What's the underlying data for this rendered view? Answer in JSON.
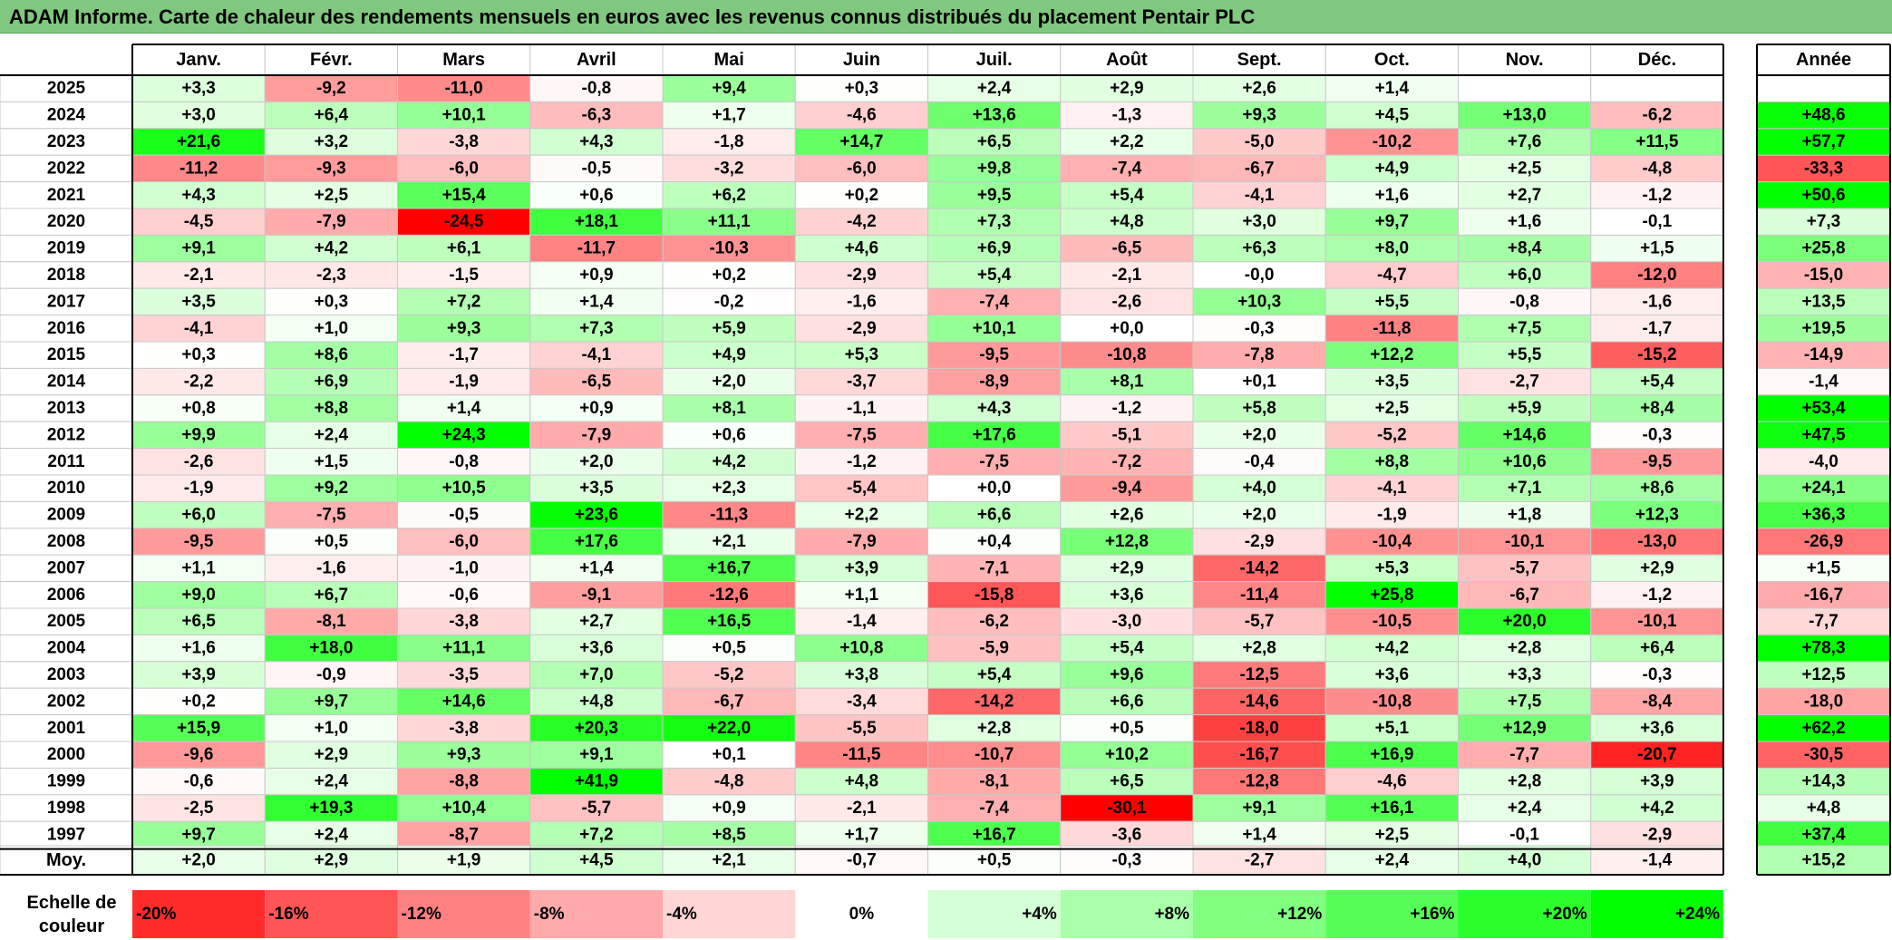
{
  "title": "ADAM Informe. Carte de chaleur des rendements mensuels en euros avec les revenus connus distribués du placement Pentair PLC",
  "chart_data": {
    "type": "heatmap",
    "columns": [
      "Janv.",
      "Févr.",
      "Mars",
      "Avril",
      "Mai",
      "Juin",
      "Juil.",
      "Août",
      "Sept.",
      "Oct.",
      "Nov.",
      "Déc."
    ],
    "year_header": "Année",
    "rows": [
      {
        "label": "2025",
        "values": [
          "+3,3",
          "-9,2",
          "-11,0",
          "-0,8",
          "+9,4",
          "+0,3",
          "+2,4",
          "+2,9",
          "+2,6",
          "+1,4",
          "",
          ""
        ],
        "year": ""
      },
      {
        "label": "2024",
        "values": [
          "+3,0",
          "+6,4",
          "+10,1",
          "-6,3",
          "+1,7",
          "-4,6",
          "+13,6",
          "-1,3",
          "+9,3",
          "+4,5",
          "+13,0",
          "-6,2"
        ],
        "year": "+48,6"
      },
      {
        "label": "2023",
        "values": [
          "+21,6",
          "+3,2",
          "-3,8",
          "+4,3",
          "-1,8",
          "+14,7",
          "+6,5",
          "+2,2",
          "-5,0",
          "-10,2",
          "+7,6",
          "+11,5"
        ],
        "year": "+57,7"
      },
      {
        "label": "2022",
        "values": [
          "-11,2",
          "-9,3",
          "-6,0",
          "-0,5",
          "-3,2",
          "-6,0",
          "+9,8",
          "-7,4",
          "-6,7",
          "+4,9",
          "+2,5",
          "-4,8"
        ],
        "year": "-33,3"
      },
      {
        "label": "2021",
        "values": [
          "+4,3",
          "+2,5",
          "+15,4",
          "+0,6",
          "+6,2",
          "+0,2",
          "+9,5",
          "+5,4",
          "-4,1",
          "+1,6",
          "+2,7",
          "-1,2"
        ],
        "year": "+50,6"
      },
      {
        "label": "2020",
        "values": [
          "-4,5",
          "-7,9",
          "-24,5",
          "+18,1",
          "+11,1",
          "-4,2",
          "+7,3",
          "+4,8",
          "+3,0",
          "+9,7",
          "+1,6",
          "-0,1"
        ],
        "year": "+7,3"
      },
      {
        "label": "2019",
        "values": [
          "+9,1",
          "+4,2",
          "+6,1",
          "-11,7",
          "-10,3",
          "+4,6",
          "+6,9",
          "-6,5",
          "+6,3",
          "+8,0",
          "+8,4",
          "+1,5"
        ],
        "year": "+25,8"
      },
      {
        "label": "2018",
        "values": [
          "-2,1",
          "-2,3",
          "-1,5",
          "+0,9",
          "+0,2",
          "-2,9",
          "+5,4",
          "-2,1",
          "-0,0",
          "-4,7",
          "+6,0",
          "-12,0"
        ],
        "year": "-15,0"
      },
      {
        "label": "2017",
        "values": [
          "+3,5",
          "+0,3",
          "+7,2",
          "+1,4",
          "-0,2",
          "-1,6",
          "-7,4",
          "-2,6",
          "+10,3",
          "+5,5",
          "-0,8",
          "-1,6"
        ],
        "year": "+13,5"
      },
      {
        "label": "2016",
        "values": [
          "-4,1",
          "+1,0",
          "+9,3",
          "+7,3",
          "+5,9",
          "-2,9",
          "+10,1",
          "+0,0",
          "-0,3",
          "-11,8",
          "+7,5",
          "-1,7"
        ],
        "year": "+19,5"
      },
      {
        "label": "2015",
        "values": [
          "+0,3",
          "+8,6",
          "-1,7",
          "-4,1",
          "+4,9",
          "+5,3",
          "-9,5",
          "-10,8",
          "-7,8",
          "+12,2",
          "+5,5",
          "-15,2"
        ],
        "year": "-14,9"
      },
      {
        "label": "2014",
        "values": [
          "-2,2",
          "+6,9",
          "-1,9",
          "-6,5",
          "+2,0",
          "-3,7",
          "-8,9",
          "+8,1",
          "+0,1",
          "+3,5",
          "-2,7",
          "+5,4"
        ],
        "year": "-1,4"
      },
      {
        "label": "2013",
        "values": [
          "+0,8",
          "+8,8",
          "+1,4",
          "+0,9",
          "+8,1",
          "-1,1",
          "+4,3",
          "-1,2",
          "+5,8",
          "+2,5",
          "+5,9",
          "+8,4"
        ],
        "year": "+53,4"
      },
      {
        "label": "2012",
        "values": [
          "+9,9",
          "+2,4",
          "+24,3",
          "-7,9",
          "+0,6",
          "-7,5",
          "+17,6",
          "-5,1",
          "+2,0",
          "-5,2",
          "+14,6",
          "-0,3"
        ],
        "year": "+47,5"
      },
      {
        "label": "2011",
        "values": [
          "-2,6",
          "+1,5",
          "-0,8",
          "+2,0",
          "+4,2",
          "-1,2",
          "-7,5",
          "-7,2",
          "-0,4",
          "+8,8",
          "+10,6",
          "-9,5"
        ],
        "year": "-4,0"
      },
      {
        "label": "2010",
        "values": [
          "-1,9",
          "+9,2",
          "+10,5",
          "+3,5",
          "+2,3",
          "-5,4",
          "+0,0",
          "-9,4",
          "+4,0",
          "-4,1",
          "+7,1",
          "+8,6"
        ],
        "year": "+24,1"
      },
      {
        "label": "2009",
        "values": [
          "+6,0",
          "-7,5",
          "-0,5",
          "+23,6",
          "-11,3",
          "+2,2",
          "+6,6",
          "+2,6",
          "+2,0",
          "-1,9",
          "+1,8",
          "+12,3"
        ],
        "year": "+36,3"
      },
      {
        "label": "2008",
        "values": [
          "-9,5",
          "+0,5",
          "-6,0",
          "+17,6",
          "+2,1",
          "-7,9",
          "+0,4",
          "+12,8",
          "-2,9",
          "-10,4",
          "-10,1",
          "-13,0"
        ],
        "year": "-26,9"
      },
      {
        "label": "2007",
        "values": [
          "+1,1",
          "-1,6",
          "-1,0",
          "+1,4",
          "+16,7",
          "+3,9",
          "-7,1",
          "+2,9",
          "-14,2",
          "+5,3",
          "-5,7",
          "+2,9"
        ],
        "year": "+1,5"
      },
      {
        "label": "2006",
        "values": [
          "+9,0",
          "+6,7",
          "-0,6",
          "-9,1",
          "-12,6",
          "+1,1",
          "-15,8",
          "+3,6",
          "-11,4",
          "+25,8",
          "-6,7",
          "-1,2"
        ],
        "year": "-16,7"
      },
      {
        "label": "2005",
        "values": [
          "+6,5",
          "-8,1",
          "-3,8",
          "+2,7",
          "+16,5",
          "-1,4",
          "-6,2",
          "-3,0",
          "-5,7",
          "-10,5",
          "+20,0",
          "-10,1"
        ],
        "year": "-7,7"
      },
      {
        "label": "2004",
        "values": [
          "+1,6",
          "+18,0",
          "+11,1",
          "+3,6",
          "+0,5",
          "+10,8",
          "-5,9",
          "+5,4",
          "+2,8",
          "+4,2",
          "+2,8",
          "+6,4"
        ],
        "year": "+78,3"
      },
      {
        "label": "2003",
        "values": [
          "+3,9",
          "-0,9",
          "-3,5",
          "+7,0",
          "-5,2",
          "+3,8",
          "+5,4",
          "+9,6",
          "-12,5",
          "+3,6",
          "+3,3",
          "-0,3"
        ],
        "year": "+12,5"
      },
      {
        "label": "2002",
        "values": [
          "+0,2",
          "+9,7",
          "+14,6",
          "+4,8",
          "-6,7",
          "-3,4",
          "-14,2",
          "+6,6",
          "-14,6",
          "-10,8",
          "+7,5",
          "-8,4"
        ],
        "year": "-18,0"
      },
      {
        "label": "2001",
        "values": [
          "+15,9",
          "+1,0",
          "-3,8",
          "+20,3",
          "+22,0",
          "-5,5",
          "+2,8",
          "+0,5",
          "-18,0",
          "+5,1",
          "+12,9",
          "+3,6"
        ],
        "year": "+62,2"
      },
      {
        "label": "2000",
        "values": [
          "-9,6",
          "+2,9",
          "+9,3",
          "+9,1",
          "+0,1",
          "-11,5",
          "-10,7",
          "+10,2",
          "-16,7",
          "+16,9",
          "-7,7",
          "-20,7"
        ],
        "year": "-30,5"
      },
      {
        "label": "1999",
        "values": [
          "-0,6",
          "+2,4",
          "-8,8",
          "+41,9",
          "-4,8",
          "+4,8",
          "-8,1",
          "+6,5",
          "-12,8",
          "-4,6",
          "+2,8",
          "+3,9"
        ],
        "year": "+14,3"
      },
      {
        "label": "1998",
        "values": [
          "-2,5",
          "+19,3",
          "+10,4",
          "-5,7",
          "+0,9",
          "-2,1",
          "-7,4",
          "-30,1",
          "+9,1",
          "+16,1",
          "+2,4",
          "+4,2"
        ],
        "year": "+4,8"
      },
      {
        "label": "1997",
        "values": [
          "+9,7",
          "+2,4",
          "-8,7",
          "+7,2",
          "+8,5",
          "+1,7",
          "+16,7",
          "-3,6",
          "+1,4",
          "+2,5",
          "-0,1",
          "-2,9"
        ],
        "year": "+37,4"
      }
    ],
    "average": {
      "label": "Moy.",
      "values": [
        "+2,0",
        "+2,9",
        "+1,9",
        "+4,5",
        "+2,1",
        "-0,7",
        "+0,5",
        "-0,3",
        "-2,7",
        "+2,4",
        "+4,0",
        "-1,4"
      ],
      "year": "+15,2"
    },
    "scale": {
      "label_lines": [
        "Echelle de",
        "couleur"
      ],
      "steps": [
        "-20%",
        "-16%",
        "-12%",
        "-8%",
        "-4%",
        "0%",
        "+4%",
        "+8%",
        "+12%",
        "+16%",
        "+20%",
        "+24%"
      ],
      "step_values": [
        -20,
        -16,
        -12,
        -8,
        -4,
        0,
        4,
        8,
        12,
        16,
        20,
        24
      ]
    },
    "colors": {
      "negative": "#ff0000",
      "neutral": "#ffffff",
      "positive": "#00ff00"
    }
  }
}
